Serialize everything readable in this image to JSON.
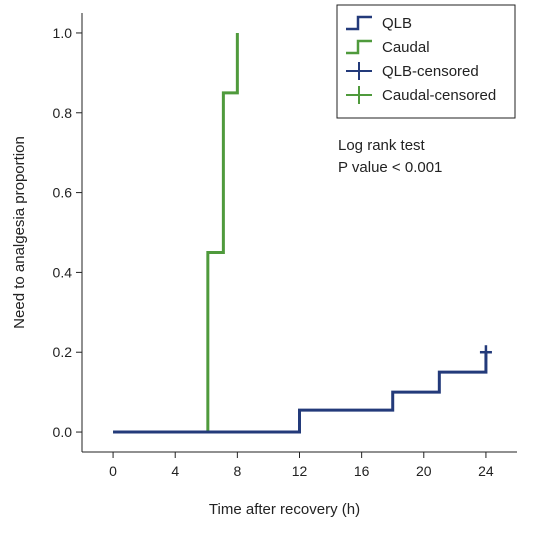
{
  "chart_data": {
    "type": "line",
    "subtype": "kaplan-meier step",
    "xlabel": "Time after recovery (h)",
    "ylabel": "Need to analgesia proportion",
    "xlim": [
      -2,
      26
    ],
    "ylim": [
      -0.05,
      1.05
    ],
    "xticks": [
      0,
      4,
      8,
      12,
      16,
      20,
      24
    ],
    "yticks": [
      0.0,
      0.2,
      0.4,
      0.6,
      0.8,
      1.0
    ],
    "ytick_labels": [
      "0.0",
      "0.2",
      "0.4",
      "0.6",
      "0.8",
      "1.0"
    ],
    "grid": false,
    "legend_position": "top-right",
    "series": [
      {
        "name": "QLB",
        "color": "#233a7a",
        "steps": [
          [
            0,
            0
          ],
          [
            6.1,
            0
          ],
          [
            12,
            0.055
          ],
          [
            18,
            0.1
          ],
          [
            21,
            0.15
          ],
          [
            24,
            0.2
          ]
        ],
        "censored": [
          [
            24,
            0.2
          ]
        ],
        "censored_name": "QLB-censored"
      },
      {
        "name": "Caudal",
        "color": "#4f9a3c",
        "steps": [
          [
            0,
            0
          ],
          [
            6.1,
            0.45
          ],
          [
            7.1,
            0.85
          ],
          [
            8,
            1.0
          ]
        ],
        "censored": [],
        "censored_name": "Caudal-censored"
      }
    ],
    "legend": [
      "QLB",
      "Caudal",
      "QLB-censored",
      "Caudal-censored"
    ],
    "annotation": [
      "Log rank test",
      "P value < 0.001"
    ]
  }
}
